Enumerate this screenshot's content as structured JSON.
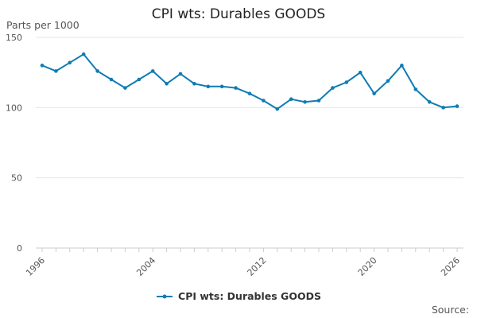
{
  "chart_data": {
    "type": "line",
    "title": "CPI wts: Durables GOODS",
    "ylabel": "Parts per 1000",
    "xlabel": "",
    "ylim": [
      0,
      150
    ],
    "y_ticks": [
      0,
      50,
      100,
      150
    ],
    "x_range": [
      1996,
      2026
    ],
    "x_ticks": [
      1996,
      2004,
      2012,
      2020,
      2026
    ],
    "grid": "horizontal",
    "legend_position": "bottom",
    "color": "#0f7cb5",
    "source_label": "Source:",
    "series": [
      {
        "name": "CPI wts: Durables GOODS",
        "x": [
          1996,
          1997,
          1998,
          1999,
          2000,
          2001,
          2002,
          2003,
          2004,
          2005,
          2006,
          2007,
          2008,
          2009,
          2010,
          2011,
          2012,
          2013,
          2014,
          2015,
          2016,
          2017,
          2018,
          2019,
          2020,
          2021,
          2022,
          2023,
          2024,
          2025,
          2026
        ],
        "values": [
          130,
          126,
          132,
          138,
          126,
          120,
          114,
          120,
          126,
          117,
          124,
          117,
          115,
          115,
          114,
          110,
          105,
          99,
          106,
          104,
          105,
          114,
          118,
          125,
          110,
          119,
          130,
          113,
          104,
          100,
          101
        ]
      }
    ]
  }
}
